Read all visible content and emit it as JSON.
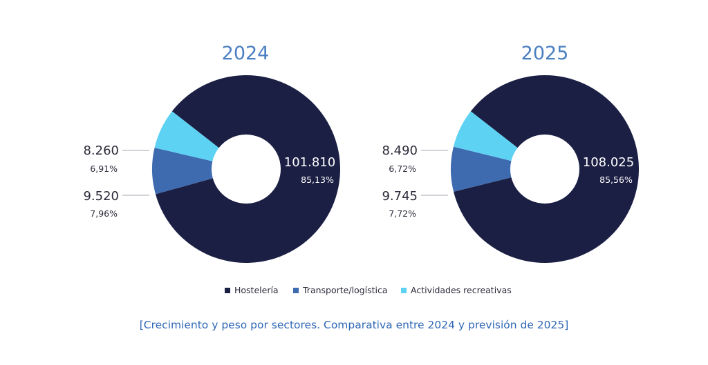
{
  "colors": {
    "hosteleria": "#1b1f44",
    "transporte": "#3e6bb0",
    "actividades": "#5ed2f3",
    "title": "#4a7fc1",
    "caption": "#2f67b5"
  },
  "legend": [
    {
      "label": "Hostelería",
      "color": "#1b1f44"
    },
    {
      "label": "Transporte/logística",
      "color": "#3e6bb0"
    },
    {
      "label": "Actividades recreativas",
      "color": "#5ed2f3"
    }
  ],
  "caption": "[Crecimiento y peso por sectores. Comparativa entre 2024 y previsión de 2025]",
  "chart_data": [
    {
      "type": "pie",
      "donut": true,
      "title": "2024",
      "categories": [
        "Hostelería",
        "Transporte/logística",
        "Actividades recreativas"
      ],
      "values": [
        101810,
        9520,
        8260
      ],
      "value_labels": [
        "101.810",
        "9.520",
        "8.260"
      ],
      "percent_labels": [
        "85,13%",
        "7,96%",
        "6,91%"
      ],
      "percents": [
        85.13,
        7.96,
        6.91
      ]
    },
    {
      "type": "pie",
      "donut": true,
      "title": "2025",
      "categories": [
        "Hostelería",
        "Transporte/logística",
        "Actividades recreativas"
      ],
      "values": [
        108025,
        9745,
        8490
      ],
      "value_labels": [
        "108.025",
        "9.745",
        "8.490"
      ],
      "percent_labels": [
        "85,56%",
        "7,72%",
        "6,72%"
      ],
      "percents": [
        85.56,
        7.72,
        6.72
      ]
    }
  ]
}
